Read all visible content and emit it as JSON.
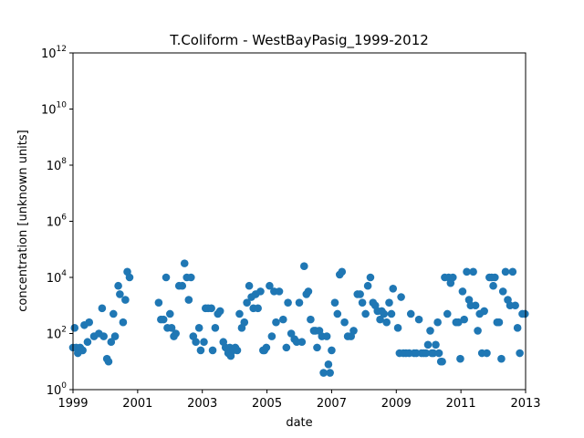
{
  "chart_data": {
    "type": "scatter",
    "title": "T.Coliform - WestBayPasig_1999-2012",
    "xlabel": "date",
    "ylabel": "concentration [unknown units]",
    "xlim": [
      1999,
      2013
    ],
    "ylim_log10": [
      0,
      12
    ],
    "yscale": "log",
    "grid": false,
    "legend": "none",
    "marker_color": "#1f77b4",
    "x_ticks": [
      "1999",
      "2001",
      "2003",
      "2005",
      "2007",
      "2009",
      "2011",
      "2013"
    ],
    "y_ticks": [
      {
        "base": "10",
        "exp": "0"
      },
      {
        "base": "10",
        "exp": "2"
      },
      {
        "base": "10",
        "exp": "4"
      },
      {
        "base": "10",
        "exp": "6"
      },
      {
        "base": "10",
        "exp": "8"
      },
      {
        "base": "10",
        "exp": "10"
      },
      {
        "base": "10",
        "exp": "12"
      }
    ],
    "points": [
      [
        1999.0,
        1.5
      ],
      [
        1999.05,
        2.2
      ],
      [
        1999.1,
        1.5
      ],
      [
        1999.15,
        1.3
      ],
      [
        1999.22,
        1.5
      ],
      [
        1999.3,
        1.4
      ],
      [
        1999.35,
        2.3
      ],
      [
        1999.45,
        1.7
      ],
      [
        1999.5,
        2.4
      ],
      [
        1999.65,
        1.9
      ],
      [
        1999.8,
        2.0
      ],
      [
        1999.9,
        2.9
      ],
      [
        1999.95,
        1.9
      ],
      [
        2000.05,
        1.1
      ],
      [
        2000.1,
        1.0
      ],
      [
        2000.18,
        1.7
      ],
      [
        2000.25,
        2.7
      ],
      [
        2000.3,
        1.9
      ],
      [
        2000.4,
        3.7
      ],
      [
        2000.45,
        3.4
      ],
      [
        2000.55,
        2.4
      ],
      [
        2000.62,
        3.2
      ],
      [
        2000.68,
        4.2
      ],
      [
        2000.75,
        4.0
      ],
      [
        2001.65,
        3.1
      ],
      [
        2001.72,
        2.5
      ],
      [
        2001.8,
        2.5
      ],
      [
        2001.88,
        4.0
      ],
      [
        2001.92,
        2.2
      ],
      [
        2002.0,
        2.7
      ],
      [
        2002.05,
        2.2
      ],
      [
        2002.12,
        1.9
      ],
      [
        2002.18,
        2.0
      ],
      [
        2002.28,
        3.7
      ],
      [
        2002.38,
        3.7
      ],
      [
        2002.45,
        4.5
      ],
      [
        2002.52,
        4.0
      ],
      [
        2002.58,
        3.2
      ],
      [
        2002.65,
        4.0
      ],
      [
        2002.72,
        1.9
      ],
      [
        2002.8,
        1.7
      ],
      [
        2002.9,
        2.2
      ],
      [
        2002.95,
        1.4
      ],
      [
        2003.05,
        1.7
      ],
      [
        2003.1,
        2.9
      ],
      [
        2003.18,
        2.9
      ],
      [
        2003.28,
        2.9
      ],
      [
        2003.32,
        1.4
      ],
      [
        2003.4,
        2.2
      ],
      [
        2003.48,
        2.7
      ],
      [
        2003.55,
        2.8
      ],
      [
        2003.65,
        1.7
      ],
      [
        2003.72,
        1.5
      ],
      [
        2003.8,
        1.3
      ],
      [
        2003.85,
        1.5
      ],
      [
        2003.88,
        1.2
      ],
      [
        2003.95,
        1.4
      ],
      [
        2004.02,
        1.5
      ],
      [
        2004.08,
        1.4
      ],
      [
        2004.15,
        2.7
      ],
      [
        2004.22,
        2.2
      ],
      [
        2004.3,
        2.4
      ],
      [
        2004.38,
        3.1
      ],
      [
        2004.45,
        3.7
      ],
      [
        2004.52,
        3.3
      ],
      [
        2004.58,
        2.9
      ],
      [
        2004.65,
        3.4
      ],
      [
        2004.72,
        2.9
      ],
      [
        2004.8,
        3.5
      ],
      [
        2004.88,
        1.4
      ],
      [
        2004.92,
        1.4
      ],
      [
        2004.98,
        1.5
      ],
      [
        2005.08,
        3.7
      ],
      [
        2005.15,
        1.9
      ],
      [
        2005.22,
        3.5
      ],
      [
        2005.28,
        2.4
      ],
      [
        2005.38,
        3.5
      ],
      [
        2005.5,
        2.5
      ],
      [
        2005.6,
        1.5
      ],
      [
        2005.65,
        3.1
      ],
      [
        2005.75,
        2.0
      ],
      [
        2005.85,
        1.8
      ],
      [
        2005.92,
        1.7
      ],
      [
        2006.0,
        3.1
      ],
      [
        2006.08,
        1.7
      ],
      [
        2006.15,
        4.4
      ],
      [
        2006.22,
        3.4
      ],
      [
        2006.28,
        3.5
      ],
      [
        2006.35,
        2.5
      ],
      [
        2006.45,
        2.1
      ],
      [
        2006.5,
        2.1
      ],
      [
        2006.55,
        1.5
      ],
      [
        2006.62,
        2.1
      ],
      [
        2006.7,
        1.9
      ],
      [
        2006.75,
        0.6
      ],
      [
        2006.85,
        1.9
      ],
      [
        2006.9,
        0.9
      ],
      [
        2006.95,
        0.6
      ],
      [
        2007.0,
        1.4
      ],
      [
        2007.1,
        3.1
      ],
      [
        2007.18,
        2.7
      ],
      [
        2007.25,
        4.1
      ],
      [
        2007.32,
        4.2
      ],
      [
        2007.4,
        2.4
      ],
      [
        2007.5,
        1.9
      ],
      [
        2007.6,
        1.9
      ],
      [
        2007.68,
        2.1
      ],
      [
        2007.8,
        3.4
      ],
      [
        2007.88,
        3.4
      ],
      [
        2007.95,
        3.1
      ],
      [
        2008.05,
        2.7
      ],
      [
        2008.12,
        3.7
      ],
      [
        2008.2,
        4.0
      ],
      [
        2008.28,
        3.1
      ],
      [
        2008.35,
        3.0
      ],
      [
        2008.42,
        2.8
      ],
      [
        2008.5,
        2.5
      ],
      [
        2008.55,
        2.8
      ],
      [
        2008.62,
        2.7
      ],
      [
        2008.7,
        2.4
      ],
      [
        2008.78,
        3.1
      ],
      [
        2008.85,
        2.7
      ],
      [
        2008.9,
        3.6
      ],
      [
        2009.05,
        2.2
      ],
      [
        2009.1,
        1.3
      ],
      [
        2009.15,
        3.3
      ],
      [
        2009.22,
        1.3
      ],
      [
        2009.3,
        1.3
      ],
      [
        2009.4,
        1.3
      ],
      [
        2009.45,
        2.7
      ],
      [
        2009.55,
        1.3
      ],
      [
        2009.62,
        1.3
      ],
      [
        2009.7,
        2.5
      ],
      [
        2009.78,
        1.3
      ],
      [
        2009.85,
        1.3
      ],
      [
        2009.92,
        1.3
      ],
      [
        2009.98,
        1.6
      ],
      [
        2010.05,
        2.1
      ],
      [
        2010.1,
        1.3
      ],
      [
        2010.15,
        1.3
      ],
      [
        2010.22,
        1.6
      ],
      [
        2010.28,
        2.4
      ],
      [
        2010.32,
        1.3
      ],
      [
        2010.38,
        1.0
      ],
      [
        2010.42,
        1.0
      ],
      [
        2010.5,
        4.0
      ],
      [
        2010.58,
        2.7
      ],
      [
        2010.62,
        4.0
      ],
      [
        2010.68,
        3.8
      ],
      [
        2010.75,
        4.0
      ],
      [
        2010.85,
        2.4
      ],
      [
        2010.92,
        2.4
      ],
      [
        2010.98,
        1.1
      ],
      [
        2011.05,
        3.5
      ],
      [
        2011.1,
        2.5
      ],
      [
        2011.18,
        4.2
      ],
      [
        2011.25,
        3.2
      ],
      [
        2011.3,
        3.0
      ],
      [
        2011.38,
        4.2
      ],
      [
        2011.45,
        3.0
      ],
      [
        2011.52,
        2.1
      ],
      [
        2011.58,
        2.7
      ],
      [
        2011.65,
        1.3
      ],
      [
        2011.72,
        2.8
      ],
      [
        2011.8,
        1.3
      ],
      [
        2011.88,
        4.0
      ],
      [
        2011.95,
        4.0
      ],
      [
        2012.0,
        3.7
      ],
      [
        2012.05,
        4.0
      ],
      [
        2012.12,
        2.4
      ],
      [
        2012.18,
        2.4
      ],
      [
        2012.25,
        1.1
      ],
      [
        2012.3,
        3.5
      ],
      [
        2012.38,
        4.2
      ],
      [
        2012.45,
        3.2
      ],
      [
        2012.52,
        3.0
      ],
      [
        2012.6,
        4.2
      ],
      [
        2012.68,
        3.0
      ],
      [
        2012.75,
        2.2
      ],
      [
        2012.82,
        1.3
      ],
      [
        2012.9,
        2.7
      ],
      [
        2012.98,
        2.7
      ]
    ]
  }
}
